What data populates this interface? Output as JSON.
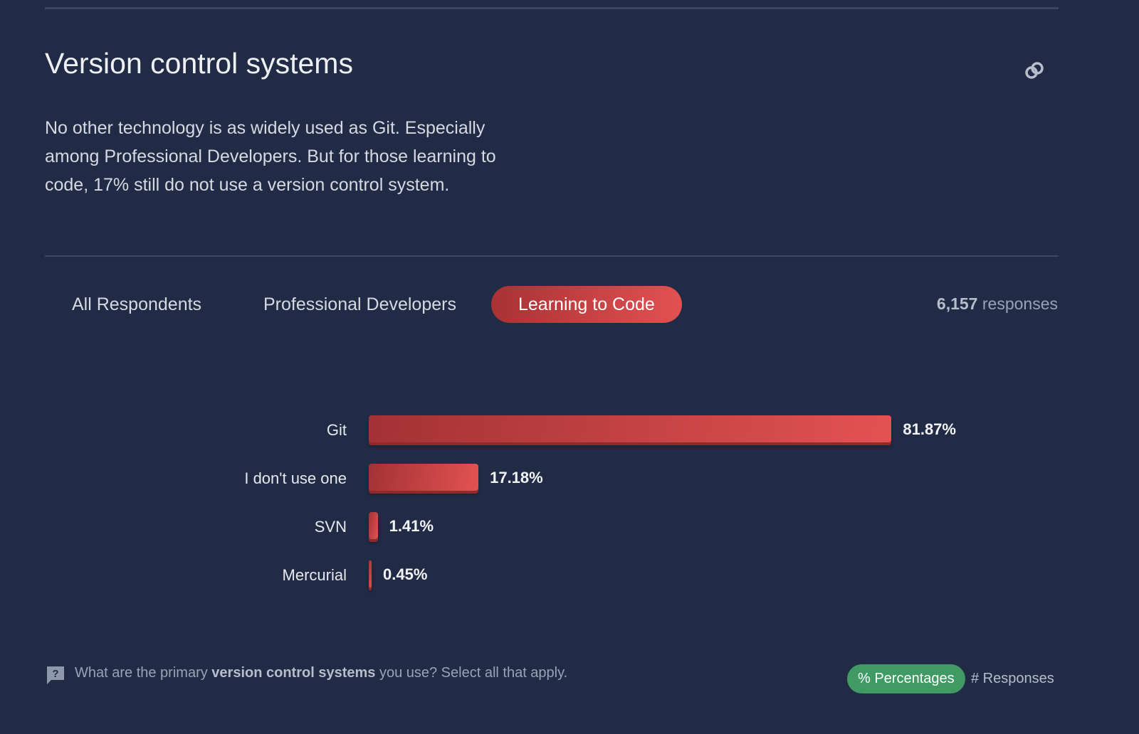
{
  "section": {
    "title": "Version control systems",
    "description": "No other technology is as widely used as Git. Especially among Professional Developers. But for those learning to code, 17% still do not use a version control system.",
    "link_icon": "link-icon"
  },
  "tabs": [
    {
      "label": "All Respondents",
      "active": false
    },
    {
      "label": "Professional Developers",
      "active": false
    },
    {
      "label": "Learning to Code",
      "active": true
    }
  ],
  "responses": {
    "count": "6,157",
    "label": "responses"
  },
  "chart_data": {
    "type": "bar",
    "orientation": "horizontal",
    "categories": [
      "Git",
      "I don't use one",
      "SVN",
      "Mercurial"
    ],
    "values": [
      81.87,
      17.18,
      1.41,
      0.45
    ],
    "value_labels": [
      "81.87%",
      "17.18%",
      "1.41%",
      "0.45%"
    ],
    "unit": "%",
    "xlim": [
      0,
      100
    ]
  },
  "footer": {
    "question_pre": "What are the primary ",
    "question_bold": "version control systems",
    "question_post": " you use? Select all that apply.",
    "toggle_percent": "% Percentages",
    "toggle_responses": "# Responses"
  },
  "colors": {
    "background": "#212b45",
    "accent": "#e25152",
    "toggle_active": "#3f9a64"
  }
}
